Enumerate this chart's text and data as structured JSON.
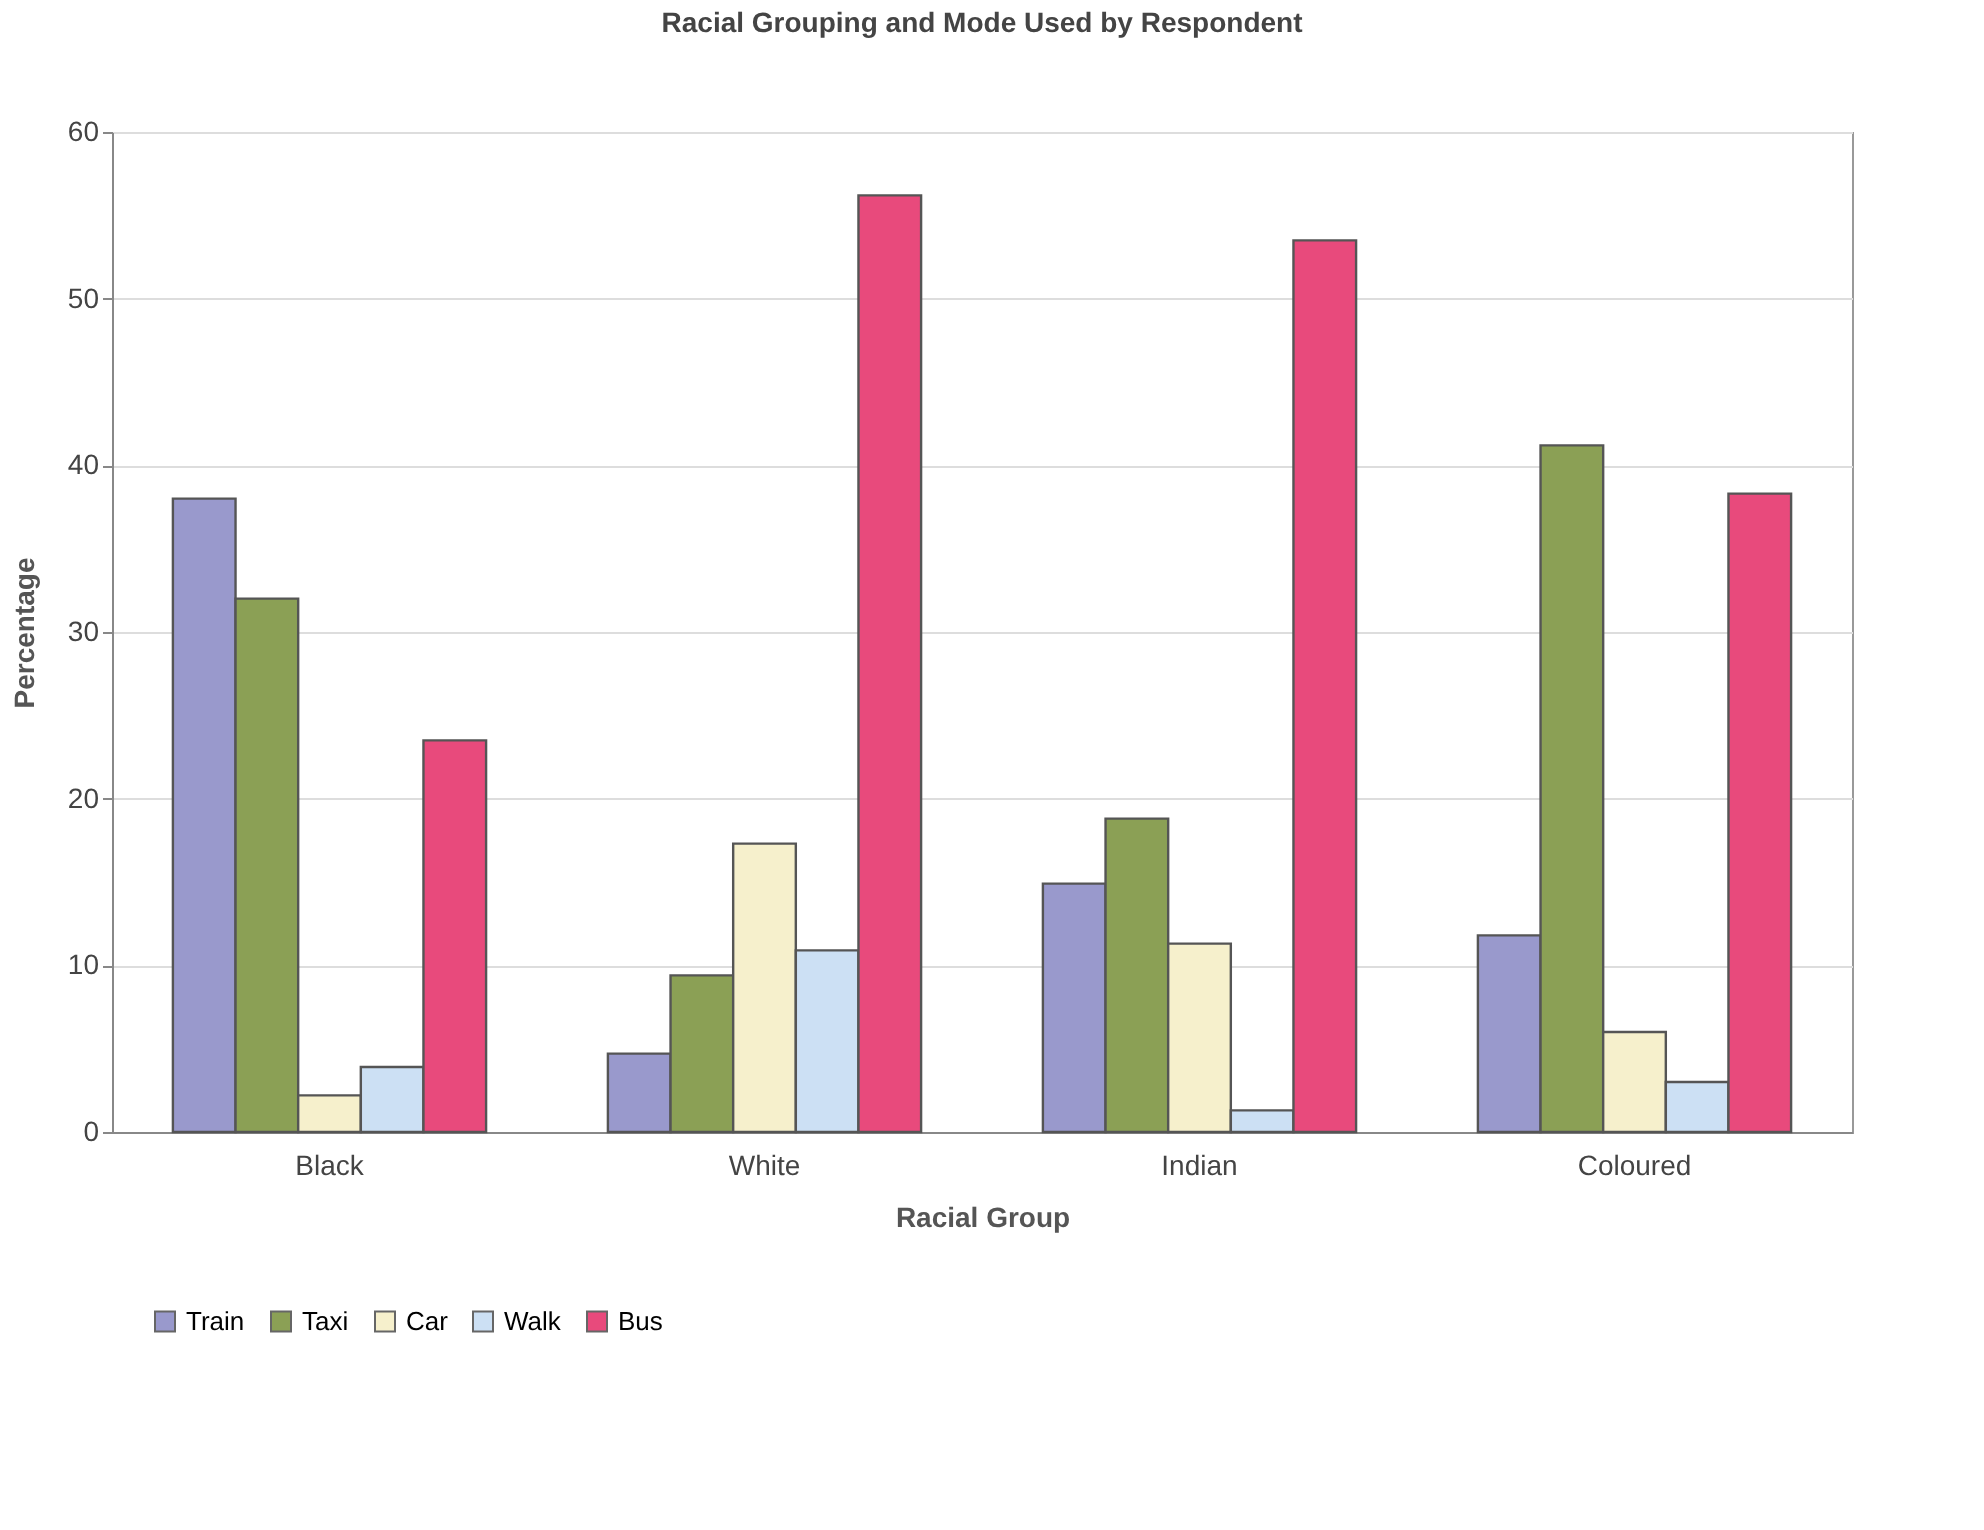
{
  "chart_data": {
    "type": "bar",
    "title": "Racial Grouping and Mode Used by Respondent",
    "xlabel": "Racial Group",
    "ylabel": "Percentage",
    "categories": [
      "Black",
      "White",
      "Indian",
      "Coloured"
    ],
    "series": [
      {
        "name": "Train",
        "color": "#9999cc",
        "values": [
          38,
          4.7,
          14.9,
          11.8
        ]
      },
      {
        "name": "Taxi",
        "color": "#8ba055",
        "values": [
          32,
          9.4,
          18.8,
          41.2
        ]
      },
      {
        "name": "Car",
        "color": "#f6f0cc",
        "values": [
          2.2,
          17.3,
          11.3,
          6.0
        ]
      },
      {
        "name": "Walk",
        "color": "#cce0f4",
        "values": [
          3.9,
          10.9,
          1.3,
          3.0
        ]
      },
      {
        "name": "Bus",
        "color": "#e84a7c",
        "values": [
          23.5,
          56.2,
          53.5,
          38.3
        ]
      }
    ],
    "ylim": [
      0,
      60
    ],
    "yticks": [
      0,
      10,
      20,
      30,
      40,
      50,
      60
    ],
    "grid": "y",
    "legend": "bottom"
  }
}
